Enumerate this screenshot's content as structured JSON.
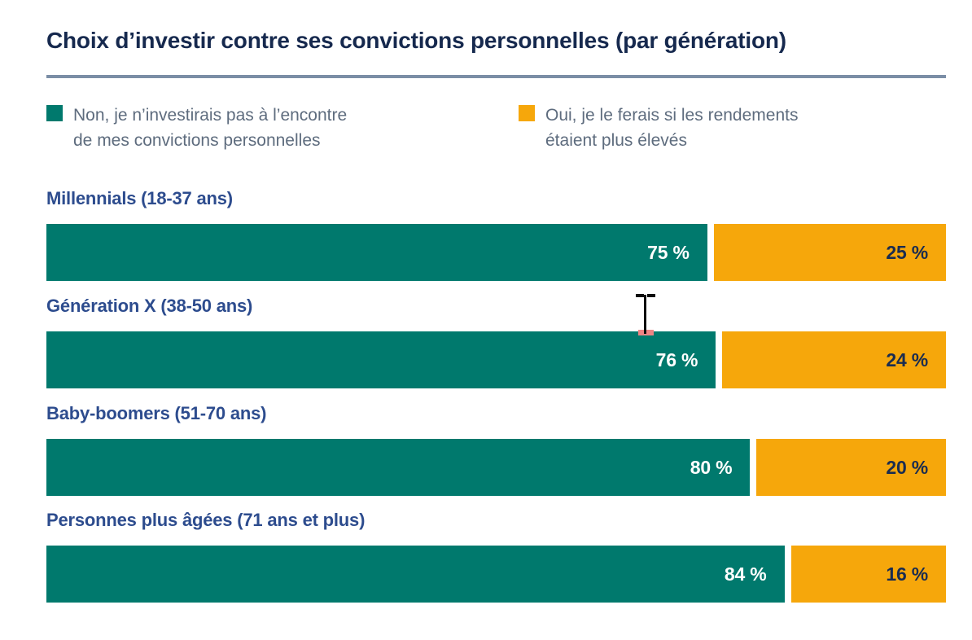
{
  "title": "Choix d’investir contre ses convictions personnelles (par génération)",
  "colors": {
    "no_segment": "#00796D",
    "yes_segment": "#F6A70B",
    "title_text": "#16294E",
    "row_label_text": "#2D4C8E",
    "legend_text": "#5E6C7E",
    "divider": "#7B8EA6",
    "pct_text_on_orange": "#1A2C50",
    "pct_text_on_teal": "#FFFFFF"
  },
  "legend": [
    {
      "name": "non",
      "color": "#00796D",
      "line1": "Non, je n’investirais pas à l’encontre",
      "line2": "de mes convictions personnelles"
    },
    {
      "name": "oui",
      "color": "#F6A70B",
      "line1": "Oui, je le ferais si les rendements",
      "line2": "étaient plus élevés"
    }
  ],
  "chart_data": {
    "type": "bar",
    "orientation": "horizontal",
    "stacked": true,
    "title": "Choix d’investir contre ses convictions personnelles (par génération)",
    "categories": [
      "Millennials (18-37 ans)",
      "Génération X (38-50 ans)",
      "Baby-boomers (51-70 ans)",
      "Personnes plus âgées (71 ans et plus)"
    ],
    "series": [
      {
        "name": "Non, je n’investirais pas à l’encontre de mes convictions personnelles",
        "color": "#00796D",
        "values": [
          75,
          76,
          80,
          84
        ]
      },
      {
        "name": "Oui, je le ferais si les rendements étaient plus élevés",
        "color": "#F6A70B",
        "values": [
          25,
          24,
          20,
          16
        ]
      }
    ],
    "value_labels": [
      [
        "75 %",
        "25 %"
      ],
      [
        "76 %",
        "24 %"
      ],
      [
        "80 %",
        "20 %"
      ],
      [
        "84 %",
        "16 %"
      ]
    ],
    "xlim": [
      0,
      100
    ],
    "grid": false,
    "legend_position": "top",
    "value_label_position": "inside-right"
  },
  "cursor": {
    "type": "text-ibeam"
  }
}
